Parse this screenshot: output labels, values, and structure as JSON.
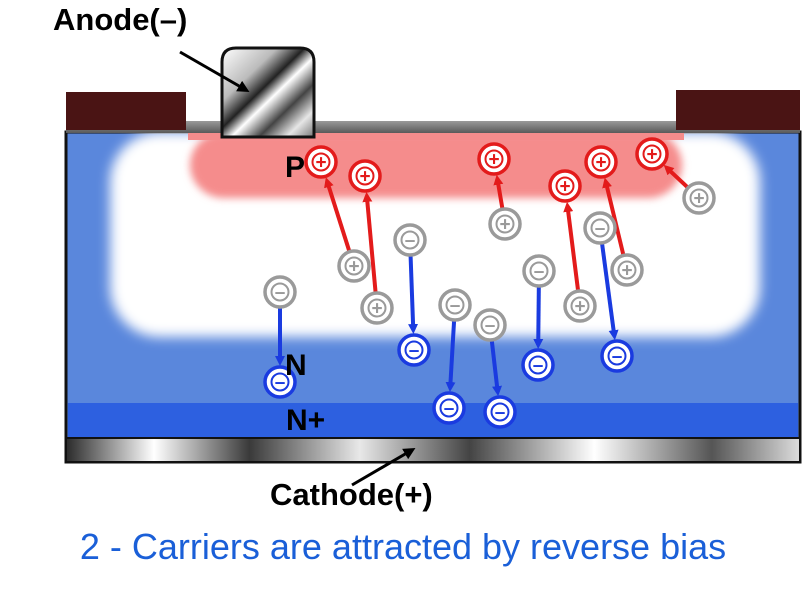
{
  "labels": {
    "anode": "Anode(–)",
    "cathode": "Cathode(+)",
    "p_region": "P",
    "n_region": "N",
    "nplus_region": "N+"
  },
  "caption": "2 - Carriers are attracted by reverse bias",
  "carrier_symbols": {
    "hole": "+",
    "electron": "–"
  },
  "colors": {
    "substrate": "#5a87dc",
    "depletion": "#ffffff",
    "p_region": "#f58c8c",
    "nplus_layer": "#2d60e0",
    "contact_pad": "#4a1414",
    "hole_drifting": "#e31b1b",
    "electron_drifting": "#1a3be0",
    "carrier_initial": "#9a9a9a",
    "caption": "#1a5fd8"
  }
}
